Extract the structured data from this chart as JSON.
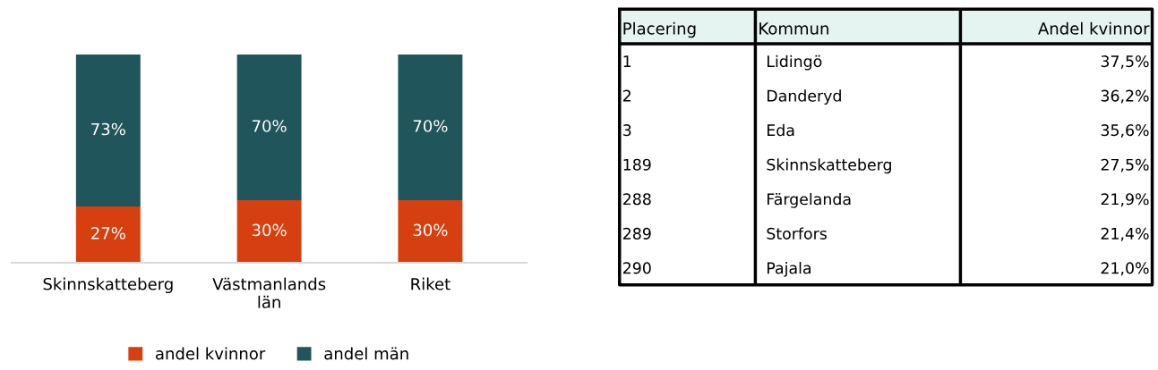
{
  "chart_data": [
    {
      "type": "bar",
      "stacked": true,
      "categories": [
        "Skinnskatteberg",
        "Västmanlands\nlän",
        "Riket"
      ],
      "series": [
        {
          "name": "andel kvinnor",
          "color": "#d64010",
          "values": [
            27,
            30,
            30
          ],
          "value_labels": [
            "27%",
            "30%",
            "30%"
          ]
        },
        {
          "name": "andel män",
          "color": "#20555c",
          "values": [
            73,
            70,
            70
          ],
          "value_labels": [
            "73%",
            "70%",
            "70%"
          ]
        }
      ],
      "legend": "bottom",
      "grid": false,
      "tick_labels": "x"
    },
    {
      "type": "other",
      "categories": [
        "Placering",
        "Kommun",
        "Andel kvinnor"
      ],
      "cell_labels": [
        [
          "1",
          "Lidingö",
          "37,5%"
        ],
        [
          "2",
          "Danderyd",
          "36,2%"
        ],
        [
          "3",
          "Eda",
          "35,6%"
        ],
        [
          "189",
          "Skinnskatteberg",
          "27,5%"
        ],
        [
          "288",
          "Färgelanda",
          "21,9%"
        ],
        [
          "289",
          "Storfors",
          "21,4%"
        ],
        [
          "290",
          "Pajala",
          "21,0%"
        ]
      ]
    }
  ]
}
